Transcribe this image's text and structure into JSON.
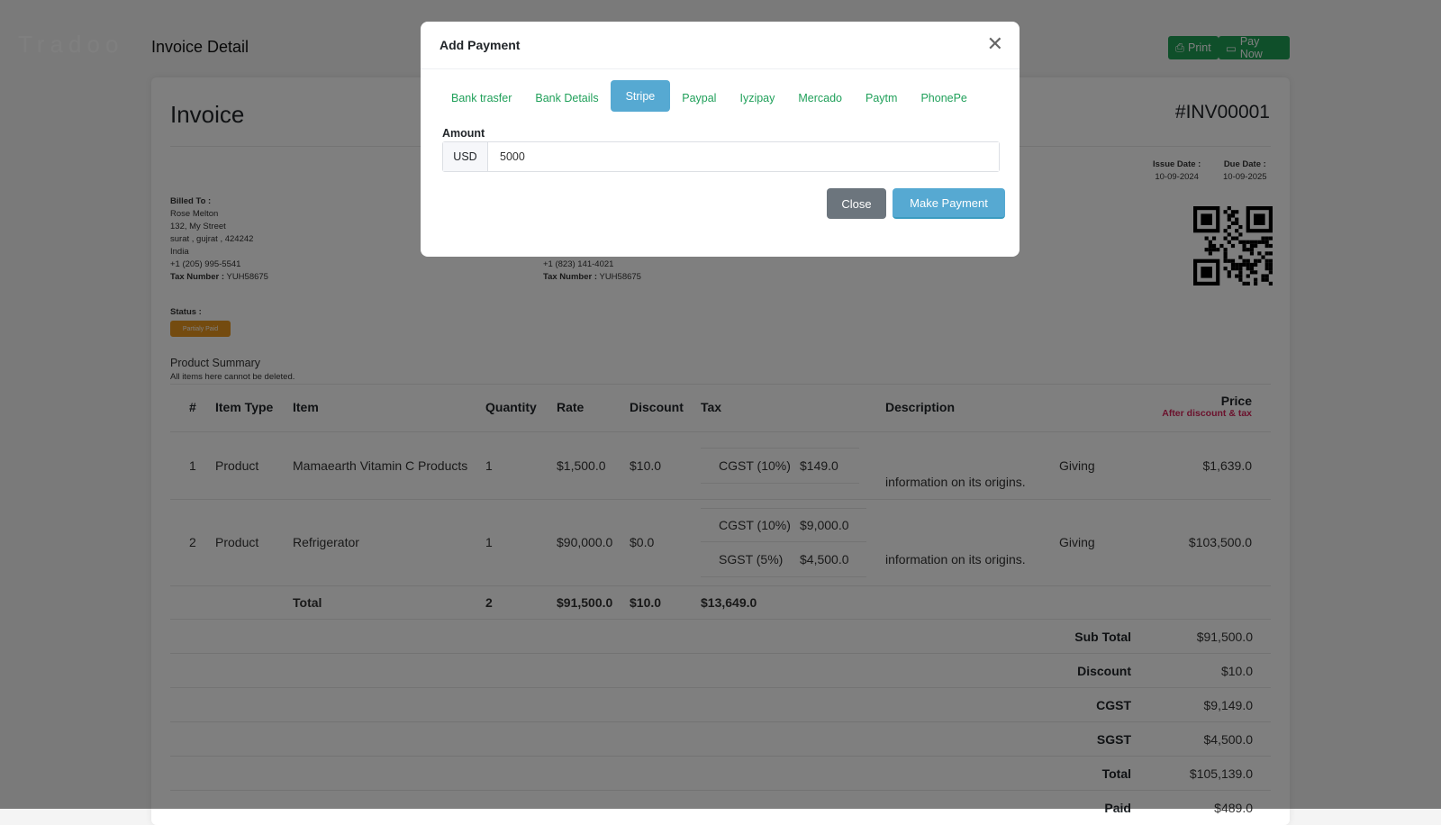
{
  "header": {
    "logo": "Tradoo",
    "title": "Invoice Detail",
    "print_label": "Print",
    "pay_now_label": "Pay Now"
  },
  "invoice": {
    "title": "Invoice",
    "number": "#INV00001",
    "issue_date_label": "Issue Date :",
    "issue_date": "10-09-2024",
    "due_date_label": "Due Date :",
    "due_date": "10-09-2025",
    "billed_to": {
      "label": "Billed To :",
      "name": "Rose Melton",
      "street": "132, My Street",
      "city": "surat , gujrat , 424242",
      "country": "India",
      "phone": "+1 (205) 995-5541",
      "tax_label": "Tax Number :",
      "tax": "YUH58675"
    },
    "billed_from": {
      "phone": "+1 (823) 141-4021",
      "tax_label": "Tax Number :",
      "tax": "YUH58675"
    },
    "status_label": "Status :",
    "status": "Partialy Paid",
    "summary_title": "Product Summary",
    "summary_note": "All items here cannot be deleted."
  },
  "table": {
    "headers": {
      "num": "#",
      "type": "Item Type",
      "item": "Item",
      "qty": "Quantity",
      "rate": "Rate",
      "discount": "Discount",
      "tax": "Tax",
      "description": "Description",
      "price": "Price",
      "price_note": "After discount & tax"
    },
    "rows": [
      {
        "num": "1",
        "type": "Product",
        "item": "Mamaearth Vitamin C Products",
        "qty": "1",
        "rate": "$1,500.0",
        "discount": "$10.0",
        "taxes": [
          {
            "name": "CGST (10%)",
            "amount": "$149.0"
          }
        ],
        "desc_a": "Giving",
        "desc_b": "information on its origins.",
        "price": "$1,639.0"
      },
      {
        "num": "2",
        "type": "Product",
        "item": "Refrigerator",
        "qty": "1",
        "rate": "$90,000.0",
        "discount": "$0.0",
        "taxes": [
          {
            "name": "CGST (10%)",
            "amount": "$9,000.0"
          },
          {
            "name": "SGST (5%)",
            "amount": "$4,500.0"
          }
        ],
        "desc_a": "Giving",
        "desc_b": "information on its origins.",
        "price": "$103,500.0"
      }
    ],
    "total": {
      "label": "Total",
      "qty": "2",
      "rate": "$91,500.0",
      "discount": "$10.0",
      "tax": "$13,649.0"
    }
  },
  "summary": [
    {
      "label": "Sub Total",
      "value": "$91,500.0"
    },
    {
      "label": "Discount",
      "value": "$10.0"
    },
    {
      "label": "CGST",
      "value": "$9,149.0"
    },
    {
      "label": "SGST",
      "value": "$4,500.0"
    },
    {
      "label": "Total",
      "value": "$105,139.0"
    },
    {
      "label": "Paid",
      "value": "$489.0"
    }
  ],
  "modal": {
    "title": "Add Payment",
    "tabs": [
      "Bank trasfer",
      "Bank Details",
      "Stripe",
      "Paypal",
      "Iyzipay",
      "Mercado",
      "Paytm",
      "PhonePe"
    ],
    "active_tab": "Stripe",
    "amount_label": "Amount",
    "currency": "USD",
    "amount_value": "5000",
    "close_label": "Close",
    "submit_label": "Make Payment"
  },
  "colors": {
    "accent": "#56a9d2",
    "tab_text": "#20a05a",
    "green_button": "#1e9e55",
    "status_badge": "#e8961e",
    "price_note": "#d6245a",
    "close_button": "#6c757d"
  }
}
